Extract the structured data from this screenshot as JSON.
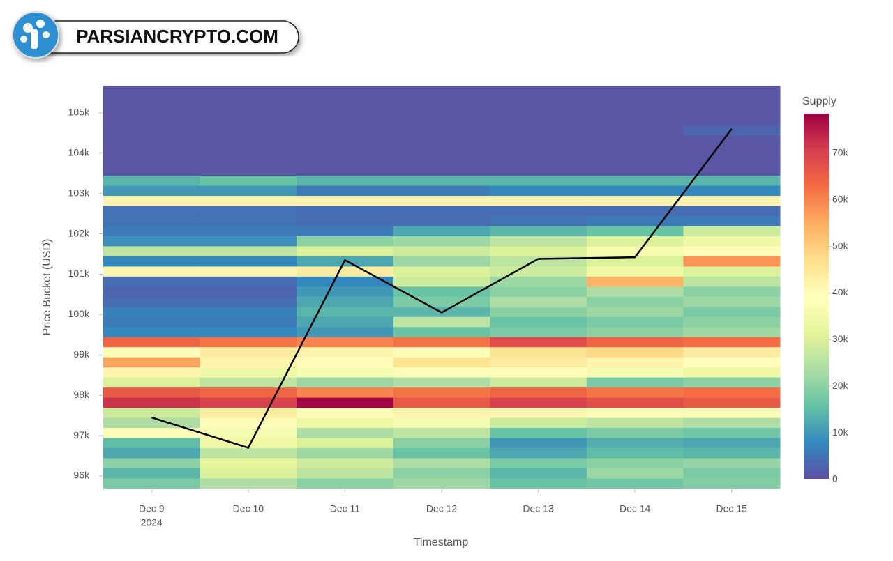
{
  "brand": "PARSIANCRYPTO.COM",
  "chart_data": {
    "type": "heatmap",
    "x_label": "Timestamp",
    "y_label": "Price Bucket (USD)",
    "categories": [
      "Dec 9",
      "Dec 10",
      "Dec 11",
      "Dec 12",
      "Dec 13",
      "Dec 14",
      "Dec 15"
    ],
    "year": "2024",
    "y": [
      95825,
      96075,
      96325,
      96575,
      96825,
      97075,
      97325,
      97575,
      97825,
      98075,
      98325,
      98575,
      98825,
      99075,
      99325,
      99575,
      99825,
      100075,
      100325,
      100575,
      100825,
      101075,
      101325,
      101575,
      101825,
      102075,
      102325,
      102575,
      102825,
      103075,
      103325,
      103575,
      103825,
      104075,
      104325,
      104575,
      104825,
      105075,
      105325,
      105575
    ],
    "z": [
      [
        18000,
        24000,
        20000,
        22000,
        16000,
        17000,
        19000
      ],
      [
        14000,
        30000,
        26000,
        20000,
        14000,
        22000,
        18000
      ],
      [
        20000,
        32000,
        28000,
        24000,
        18000,
        20000,
        21000
      ],
      [
        12000,
        26000,
        22000,
        16000,
        12000,
        15000,
        14000
      ],
      [
        15000,
        34000,
        30000,
        20000,
        10000,
        13000,
        12000
      ],
      [
        38000,
        36000,
        24000,
        26000,
        16000,
        18000,
        17000
      ],
      [
        24000,
        40000,
        34000,
        36000,
        28000,
        26000,
        24000
      ],
      [
        28000,
        44000,
        40000,
        42000,
        42000,
        40000,
        38000
      ],
      [
        72000,
        70000,
        78000,
        66000,
        70000,
        68000,
        66000
      ],
      [
        66000,
        64000,
        60000,
        62000,
        64000,
        62000,
        63000
      ],
      [
        30000,
        26000,
        22000,
        24000,
        28000,
        18000,
        20000
      ],
      [
        42000,
        34000,
        36000,
        38000,
        40000,
        36000,
        34000
      ],
      [
        56000,
        42000,
        40000,
        46000,
        44000,
        42000,
        40000
      ],
      [
        38000,
        44000,
        42000,
        40000,
        46000,
        48000,
        44000
      ],
      [
        64000,
        62000,
        60000,
        62000,
        68000,
        64000,
        63000
      ],
      [
        8000,
        8000,
        10000,
        16000,
        18000,
        20000,
        22000
      ],
      [
        6000,
        6000,
        12000,
        26000,
        16000,
        18000,
        20000
      ],
      [
        7000,
        7000,
        14000,
        14000,
        20000,
        22000,
        18000
      ],
      [
        4000,
        4000,
        12000,
        18000,
        24000,
        20000,
        22000
      ],
      [
        3000,
        3000,
        10000,
        16000,
        20000,
        24000,
        20000
      ],
      [
        4000,
        4000,
        8000,
        28000,
        22000,
        54000,
        26000
      ],
      [
        42000,
        42000,
        44000,
        30000,
        28000,
        34000,
        30000
      ],
      [
        8000,
        8000,
        12000,
        22000,
        26000,
        30000,
        58000
      ],
      [
        26000,
        26000,
        30000,
        28000,
        30000,
        36000,
        40000
      ],
      [
        9000,
        9000,
        20000,
        22000,
        26000,
        30000,
        34000
      ],
      [
        6000,
        6000,
        6000,
        12000,
        14000,
        16000,
        28000
      ],
      [
        5000,
        5000,
        4000,
        4000,
        5000,
        6000,
        6000
      ],
      [
        5000,
        5000,
        4000,
        4000,
        4000,
        4000,
        4000
      ],
      [
        42000,
        42000,
        42000,
        42000,
        42000,
        42000,
        42000
      ],
      [
        10000,
        10000,
        6000,
        6000,
        8000,
        8000,
        8000
      ],
      [
        14000,
        16000,
        14000,
        14000,
        14000,
        14000,
        14000
      ],
      [
        1000,
        1000,
        1000,
        1000,
        1000,
        1000,
        1000
      ],
      [
        1000,
        1000,
        1000,
        1000,
        1000,
        1000,
        1000
      ],
      [
        1000,
        1000,
        1000,
        1000,
        1000,
        1000,
        1000
      ],
      [
        1000,
        1000,
        1000,
        1000,
        1000,
        1000,
        1000
      ],
      [
        1000,
        1000,
        1000,
        1000,
        1000,
        1000,
        3000
      ],
      [
        1000,
        1000,
        1000,
        1000,
        1000,
        1000,
        1000
      ],
      [
        1000,
        1000,
        1000,
        1000,
        1000,
        1000,
        1000
      ],
      [
        1000,
        1000,
        1000,
        1000,
        1000,
        1000,
        1000
      ],
      [
        1000,
        1000,
        1000,
        1000,
        1000,
        1000,
        1000
      ]
    ],
    "line": {
      "color": "#000000",
      "values": [
        97450,
        96700,
        101350,
        100050,
        101380,
        101420,
        104600
      ]
    },
    "ylim": [
      95690,
      105670
    ],
    "yticks": [
      {
        "value": 96000,
        "label": "96k"
      },
      {
        "value": 97000,
        "label": "97k"
      },
      {
        "value": 98000,
        "label": "98k"
      },
      {
        "value": 99000,
        "label": "99k"
      },
      {
        "value": 100000,
        "label": "100k"
      },
      {
        "value": 101000,
        "label": "101k"
      },
      {
        "value": 102000,
        "label": "102k"
      },
      {
        "value": 103000,
        "label": "103k"
      },
      {
        "value": 104000,
        "label": "104k"
      },
      {
        "value": 105000,
        "label": "105k"
      }
    ],
    "colorbar_title": "Supply",
    "zlim": [
      0,
      78500
    ],
    "zticks": [
      0,
      {
        "value": 10000,
        "label": "10k"
      },
      {
        "value": 20000,
        "label": "20k"
      },
      {
        "value": 30000,
        "label": "30k"
      },
      {
        "value": 40000,
        "label": "40k"
      },
      {
        "value": 50000,
        "label": "50k"
      },
      {
        "value": 60000,
        "label": "60k"
      },
      {
        "value": 70000,
        "label": "70k"
      }
    ],
    "colorscale": [
      "#5e4fa2",
      "#3288bd",
      "#66c2a5",
      "#abdda4",
      "#e6f598",
      "#ffffbf",
      "#fee08b",
      "#fdae61",
      "#f46d43",
      "#d53e4f",
      "#9e0142"
    ]
  }
}
